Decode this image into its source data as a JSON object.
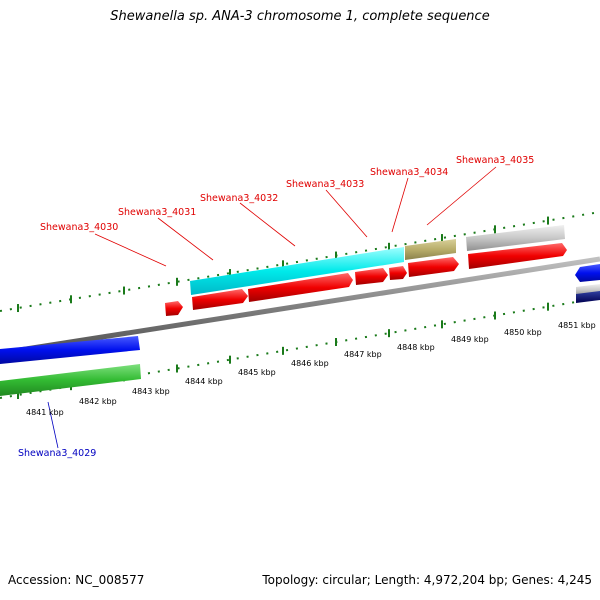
{
  "title": "Shewanella sp. ANA-3 chromosome 1, complete sequence",
  "footer": {
    "accession": "Accession: NC_008577",
    "summary": "Topology: circular; Length: 4,972,204 bp; Genes: 4,245"
  },
  "colors": {
    "backbone": "#808080",
    "gene_label_red": "#e00000",
    "gene_label_blue": "#0000c0",
    "tick": "#1a7a1a"
  },
  "kbp_labels": [
    "4841 kbp",
    "4842 kbp",
    "4843 kbp",
    "4844 kbp",
    "4845 kbp",
    "4846 kbp",
    "4847 kbp",
    "4848 kbp",
    "4849 kbp",
    "4850 kbp",
    "4851 kbp"
  ],
  "gene_labels": [
    {
      "text": "Shewana3_4029",
      "color": "blue"
    },
    {
      "text": "Shewana3_4030",
      "color": "red"
    },
    {
      "text": "Shewana3_4031",
      "color": "red"
    },
    {
      "text": "Shewana3_4032",
      "color": "red"
    },
    {
      "text": "Shewana3_4033",
      "color": "red"
    },
    {
      "text": "Shewana3_4034",
      "color": "red"
    },
    {
      "text": "Shewana3_4035",
      "color": "red"
    }
  ]
}
